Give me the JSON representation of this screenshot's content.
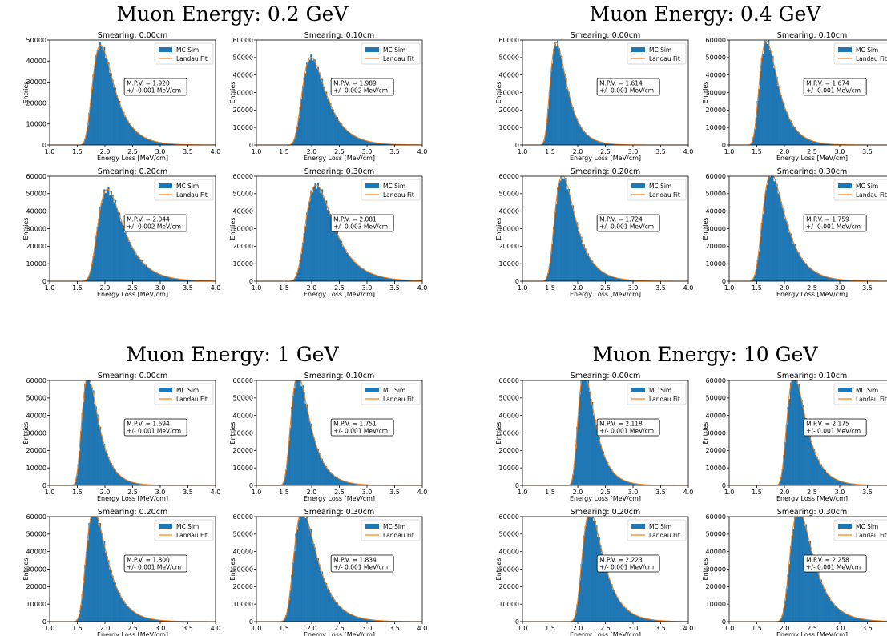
{
  "figure": {
    "groups": [
      {
        "title": "Muon Energy:  0.2 GeV",
        "mpv": [
          "1.920",
          "1.989",
          "2.044",
          "2.081"
        ],
        "err": [
          "0.001",
          "0.002",
          "0.002",
          "0.003"
        ],
        "peaks": [
          47500,
          50200,
          52500,
          55000
        ]
      },
      {
        "title": "Muon Energy:  0.4 GeV",
        "mpv": [
          "1.614",
          "1.674",
          "1.724",
          "1.759"
        ],
        "err": [
          "0.001",
          "0.001",
          "0.001",
          "0.001"
        ],
        "peaks": [
          58500,
          59500,
          60500,
          61500
        ]
      },
      {
        "title": "Muon Energy:  1 GeV",
        "mpv": [
          "1.694",
          "1.751",
          "1.800",
          "1.834"
        ],
        "err": [
          "0.001",
          "0.001",
          "0.001",
          "0.001"
        ],
        "peaks": [
          62000,
          63000,
          63500,
          63500
        ]
      },
      {
        "title": "Muon Energy:  10 GeV",
        "mpv": [
          "2.118",
          "2.175",
          "2.223",
          "2.258"
        ],
        "err": [
          "0.001",
          "0.001",
          "0.001",
          "0.001"
        ],
        "peaks": [
          64500,
          63000,
          63000,
          64000
        ]
      }
    ]
  },
  "chart_data": {
    "type": "bar",
    "panel_titles": [
      "Smearing: 0.00cm",
      "Smearing: 0.10cm",
      "Smearing: 0.20cm",
      "Smearing: 0.30cm"
    ],
    "xlabel": "Energy Loss [MeV/cm]",
    "ylabel": "Entries",
    "xlim": [
      1.0,
      4.0
    ],
    "xticks": [
      "1.0",
      "1.5",
      "2.0",
      "2.5",
      "3.0",
      "3.5",
      "4.0"
    ],
    "legend": [
      "MC Sim",
      "Landau Fit"
    ],
    "legend_position": "top-right",
    "mpv_prefix": "M.P.V. = ",
    "err_prefix": "+/- ",
    "err_suffix": " MeV/cm",
    "ylim": [
      [
        0,
        50000
      ],
      [
        0,
        60000
      ],
      [
        0,
        60000
      ],
      [
        0,
        60000
      ]
    ],
    "ytick_step": 10000,
    "colors": {
      "hist": "#1f77b4",
      "fit": "#ff7f0e"
    }
  }
}
